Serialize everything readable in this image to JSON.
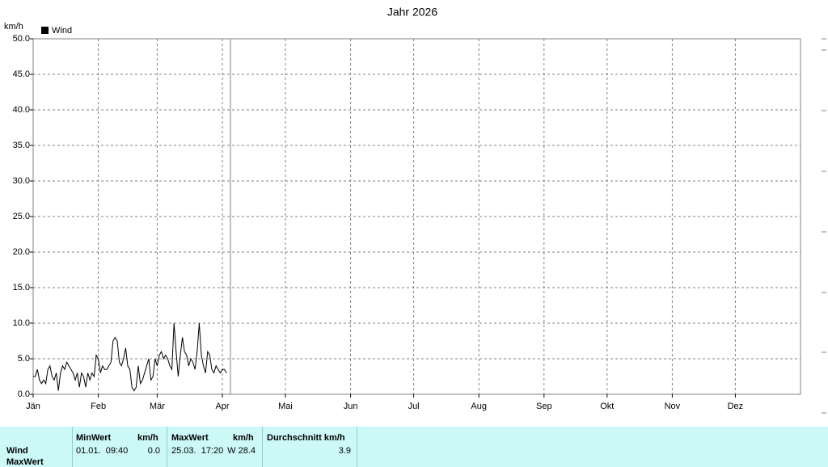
{
  "chart_data": {
    "type": "line",
    "title": "Jahr 2026",
    "y_label": "km/h",
    "x": [
      0,
      1,
      2,
      3,
      4,
      5,
      6,
      7,
      8,
      9,
      10,
      11,
      12,
      13,
      14,
      15,
      16,
      17,
      18,
      19,
      20,
      21,
      22,
      23,
      24,
      25,
      26,
      27,
      28,
      29,
      30,
      31,
      32,
      33,
      34,
      35,
      36,
      37,
      38,
      39,
      40,
      41,
      42,
      43,
      44,
      45,
      46,
      47,
      48,
      49,
      50,
      51,
      52,
      53,
      54,
      55,
      56,
      57,
      58,
      59,
      60,
      61,
      62,
      63,
      64,
      65,
      66,
      67,
      68,
      69,
      70,
      71,
      72,
      73,
      74,
      75,
      76,
      77,
      78,
      79,
      80,
      81,
      82,
      83,
      84,
      85,
      86,
      87,
      88,
      89,
      90,
      91,
      92
    ],
    "series": [
      {
        "name": "Wind",
        "color": "#000000",
        "values": [
          2.5,
          2.5,
          3.5,
          2,
          1.5,
          2,
          1.5,
          3.5,
          4,
          2.5,
          2,
          3,
          0.5,
          3,
          4,
          3.5,
          4.5,
          4,
          3.5,
          3,
          2,
          3,
          1,
          3,
          2.5,
          1,
          3,
          2,
          3,
          2.5,
          5.5,
          5,
          3,
          4,
          3.5,
          3.5,
          4,
          4.5,
          7.5,
          8,
          7.5,
          4.5,
          4,
          5,
          6.5,
          4,
          3.5,
          1,
          0.5,
          1,
          4,
          1.5,
          2,
          3,
          4,
          5,
          2,
          2.5,
          5,
          4,
          5.5,
          6,
          5,
          5.5,
          5,
          4,
          3.5,
          10,
          6,
          2.5,
          5.5,
          8,
          6,
          5.5,
          4,
          5,
          4.5,
          3.5,
          6,
          10,
          5.5,
          4,
          3,
          6,
          5.5,
          3.5,
          3,
          4,
          3.5,
          3,
          3.5,
          3.5,
          3
        ]
      }
    ],
    "xlim": [
      0,
      365
    ],
    "xticks": [
      {
        "value": 0,
        "label": "Jän"
      },
      {
        "value": 31,
        "label": "Feb"
      },
      {
        "value": 59,
        "label": "Mär"
      },
      {
        "value": 90,
        "label": "Apr"
      },
      {
        "value": 120,
        "label": "Mai"
      },
      {
        "value": 151,
        "label": "Jun"
      },
      {
        "value": 181,
        "label": "Jul"
      },
      {
        "value": 212,
        "label": "Aug"
      },
      {
        "value": 243,
        "label": "Sep"
      },
      {
        "value": 273,
        "label": "Okt"
      },
      {
        "value": 304,
        "label": "Nov"
      },
      {
        "value": 334,
        "label": "Dez"
      }
    ],
    "ylim": [
      0,
      50
    ],
    "yticks": [
      {
        "value": 0,
        "label": "0.0"
      },
      {
        "value": 5,
        "label": "5.0"
      },
      {
        "value": 10,
        "label": "10.0"
      },
      {
        "value": 15,
        "label": "15.0"
      },
      {
        "value": 20,
        "label": "20.0"
      },
      {
        "value": 25,
        "label": "25.0"
      },
      {
        "value": 30,
        "label": "30.0"
      },
      {
        "value": 35,
        "label": "35.0"
      },
      {
        "value": 40,
        "label": "40.0"
      },
      {
        "value": 45,
        "label": "45.0"
      },
      {
        "value": 50,
        "label": "50.0"
      }
    ],
    "grid": true
  },
  "table": {
    "headers": [
      "MinWert",
      "km/h",
      "MaxWert",
      "km/h",
      "Durchschnitt km/h"
    ],
    "rows": [
      {
        "label": "Wind",
        "cells": [
          "01.01.  09:40",
          "0.0",
          "25.03.  17:20",
          "W 28.4",
          "3.9"
        ]
      },
      {
        "label": "MaxWert"
      }
    ]
  }
}
